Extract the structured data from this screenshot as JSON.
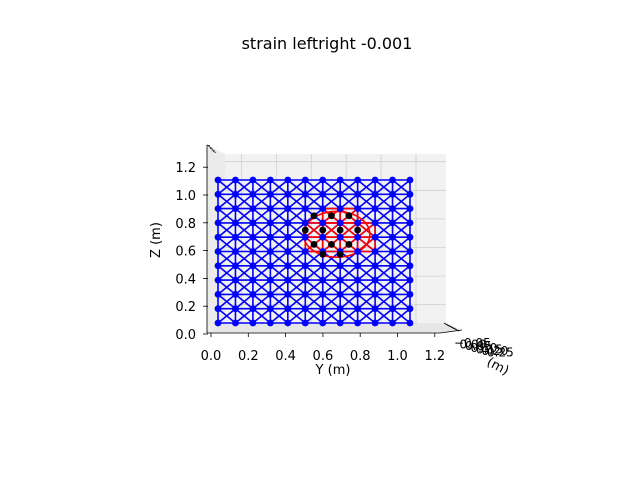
{
  "chart_data": {
    "type": "scatter",
    "projection": "3d",
    "title": "strain leftright -0.001",
    "ylabel": "Y (m)",
    "zlabel": "Z (m)",
    "xlabel": "(m)",
    "y_ticks": [
      "0.0",
      "0.2",
      "0.4",
      "0.6",
      "0.8",
      "1.0",
      "1.2"
    ],
    "z_ticks": [
      "0.0",
      "0.2",
      "0.4",
      "0.6",
      "0.8",
      "1.0",
      "1.2"
    ],
    "x_ticks_overlapping": [
      "−0.05",
      "0.00",
      "0.05",
      "0.10",
      "0.15",
      "0.20",
      "0.25"
    ],
    "ylim": [
      0.0,
      1.3
    ],
    "zlim": [
      0.0,
      1.3
    ],
    "grid": true,
    "lattice": {
      "y_nodes": [
        0.0,
        0.1,
        0.2,
        0.3,
        0.4,
        0.5,
        0.6,
        0.7,
        0.8,
        0.9,
        1.0,
        1.1
      ],
      "z_nodes": [
        0.0,
        0.1,
        0.2,
        0.3,
        0.4,
        0.5,
        0.6,
        0.7,
        0.8,
        0.9,
        1.0
      ],
      "members": "orthogonal and diagonal cross-braced bars between adjacent nodes",
      "node_color": "#0000ff",
      "member_color": "#0000ff"
    },
    "highlight": {
      "member_color": "#ff0000",
      "node_color": "#000000",
      "center_y": 0.68,
      "center_z": 0.62,
      "radius_y": 0.19,
      "radius_z": 0.16,
      "black_nodes": [
        [
          0.55,
          0.75
        ],
        [
          0.65,
          0.75
        ],
        [
          0.75,
          0.75
        ],
        [
          0.5,
          0.65
        ],
        [
          0.6,
          0.65
        ],
        [
          0.7,
          0.65
        ],
        [
          0.8,
          0.65
        ],
        [
          0.55,
          0.55
        ],
        [
          0.65,
          0.55
        ],
        [
          0.75,
          0.55
        ],
        [
          0.6,
          0.48
        ],
        [
          0.7,
          0.48
        ]
      ]
    }
  }
}
